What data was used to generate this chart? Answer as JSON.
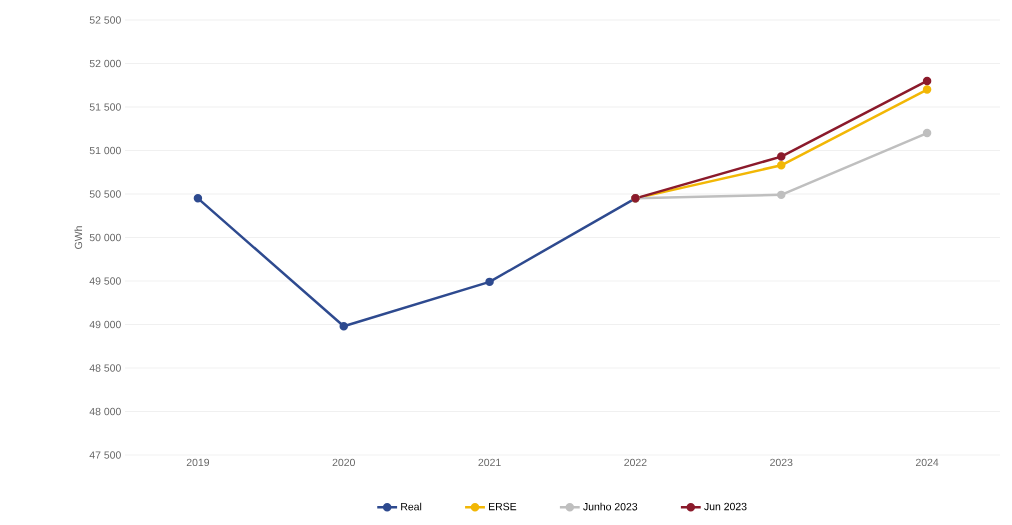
{
  "chart_data": {
    "type": "line",
    "ylabel": "GWh",
    "categories": [
      "2019",
      "2020",
      "2021",
      "2022",
      "2023",
      "2024"
    ],
    "series": [
      {
        "name": "Real",
        "color": "#2e4a8f",
        "values": [
          50450,
          48980,
          49490,
          50450,
          null,
          null
        ]
      },
      {
        "name": "ERSE",
        "color": "#f2b705",
        "values": [
          null,
          null,
          null,
          50450,
          50830,
          51700
        ]
      },
      {
        "name": "Junho 2023",
        "color": "#bfbfbf",
        "values": [
          null,
          null,
          null,
          50450,
          50490,
          51200
        ]
      },
      {
        "name": "Jun 2023",
        "color": "#8b1a2b",
        "values": [
          null,
          null,
          null,
          50450,
          50930,
          51800
        ]
      }
    ],
    "ylim": [
      47500,
      52500
    ],
    "yticks": [
      {
        "value": 47500,
        "label": "47 500"
      },
      {
        "value": 48000,
        "label": "48 000"
      },
      {
        "value": 48500,
        "label": "48 500"
      },
      {
        "value": 49000,
        "label": "49 000"
      },
      {
        "value": 49500,
        "label": "49 500"
      },
      {
        "value": 50000,
        "label": "50 000"
      },
      {
        "value": 50500,
        "label": "50 500"
      },
      {
        "value": 51000,
        "label": "51 000"
      },
      {
        "value": 51500,
        "label": "51 500"
      },
      {
        "value": 52000,
        "label": "52 000"
      },
      {
        "value": 52500,
        "label": "52 500"
      }
    ],
    "grid": "y",
    "legend": "bottom",
    "marker": "circle",
    "line_style": "solid"
  }
}
